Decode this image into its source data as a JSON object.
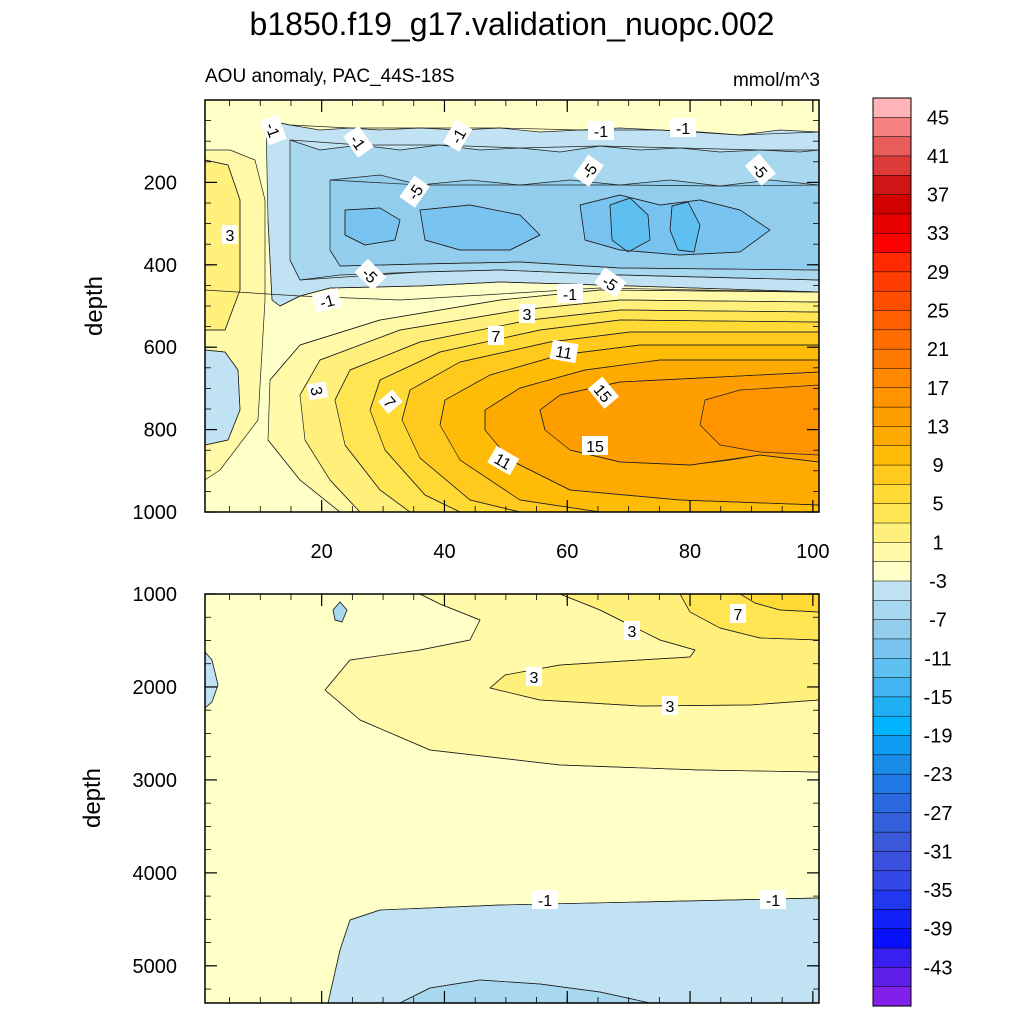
{
  "chart_data": [
    {
      "type": "contour",
      "panel": "upper",
      "title": "b1850.f19_g17.validation_nuopc.002",
      "subtitle_left": "AOU anomaly, PAC_44S-18S",
      "subtitle_right": "mmol/m^3",
      "xlabel": "",
      "ylabel": "depth",
      "xlim": [
        1,
        101
      ],
      "ylim": [
        1000,
        0
      ],
      "xticks": [
        "20",
        "40",
        "60",
        "80",
        "100"
      ],
      "yticks": [
        "200",
        "400",
        "600",
        "800",
        "1000"
      ],
      "ytick_values": [
        200,
        400,
        600,
        800,
        1000
      ],
      "contour_labels": [
        "-1",
        "-1",
        "-1",
        "-1",
        "-1",
        "-5",
        "-5",
        "-5",
        "3",
        "-5",
        "-5",
        "-1",
        "-1",
        "3",
        "7",
        "11",
        "3",
        "7",
        "15",
        "15",
        "11"
      ],
      "features": [
        {
          "name": "core_max",
          "value": 17,
          "x_range": [
            55,
            101
          ],
          "depth_range": [
            650,
            900
          ]
        },
        {
          "name": "upper_min",
          "value": -9,
          "x_range": [
            25,
            101
          ],
          "depth_range": [
            130,
            460
          ]
        },
        {
          "name": "min_pockets",
          "value": -13,
          "x": [
            70,
            78
          ],
          "depth": [
            320,
            320
          ]
        }
      ]
    },
    {
      "type": "contour",
      "panel": "lower",
      "xlabel": "",
      "ylabel": "depth",
      "xlim": [
        1,
        101
      ],
      "ylim": [
        5400,
        1000
      ],
      "yticks": [
        "1000",
        "2000",
        "3000",
        "4000",
        "5000"
      ],
      "ytick_values": [
        1000,
        2000,
        3000,
        4000,
        5000
      ],
      "contour_labels": [
        "7",
        "3",
        "3",
        "3",
        "-1",
        "-1"
      ],
      "features": [
        {
          "name": "deep_negative",
          "value": -1,
          "x_range": [
            25,
            101
          ],
          "depth_range": [
            4300,
            5400
          ]
        },
        {
          "name": "mid_positive",
          "value": 3,
          "x_range": [
            20,
            101
          ],
          "depth_range": [
            1000,
            2800
          ]
        }
      ]
    }
  ],
  "colorbar": {
    "ticks": [
      "45",
      "41",
      "37",
      "33",
      "29",
      "25",
      "21",
      "17",
      "13",
      "9",
      "5",
      "1",
      "-3",
      "-7",
      "-11",
      "-15",
      "-19",
      "-23",
      "-27",
      "-31",
      "-35",
      "-39",
      "-43"
    ],
    "levels_top_to_bottom": [
      47,
      45,
      43,
      41,
      39,
      37,
      35,
      33,
      31,
      29,
      27,
      25,
      23,
      21,
      19,
      17,
      15,
      13,
      11,
      9,
      7,
      5,
      3,
      1,
      -1,
      -3,
      -5,
      -7,
      -9,
      -11,
      -13,
      -15,
      -17,
      -19,
      -21,
      -23,
      -25,
      -27,
      -29,
      -31,
      -33,
      -35,
      -37,
      -39,
      -41,
      -43,
      -45
    ],
    "colors_top_to_bottom": [
      "#ffb4b9",
      "#f58082",
      "#e95c5c",
      "#dd3a3a",
      "#d01616",
      "#d30000",
      "#e80000",
      "#ff0000",
      "#ff2a00",
      "#ff3d00",
      "#ff4e00",
      "#ff5f00",
      "#ff6d00",
      "#ff7a00",
      "#ff8800",
      "#ff9400",
      "#ff9e00",
      "#ffaa00",
      "#ffbc06",
      "#ffca1d",
      "#ffda35",
      "#ffe552",
      "#fff07c",
      "#fff9a8",
      "#ffffc8",
      "#c0e2f2",
      "#a8d8f0",
      "#92cdee",
      "#78c3ef",
      "#5ec0f0",
      "#42b5f2",
      "#1fb0f4",
      "#00b4ff",
      "#0d9cf2",
      "#1a8ce8",
      "#2278e4",
      "#2a68e0",
      "#3460dc",
      "#3a58d8",
      "#3c50e0",
      "#3448e8",
      "#2238f0",
      "#1220f8",
      "#0810ff",
      "#3a20f0",
      "#5e20e8",
      "#8020e8"
    ]
  }
}
